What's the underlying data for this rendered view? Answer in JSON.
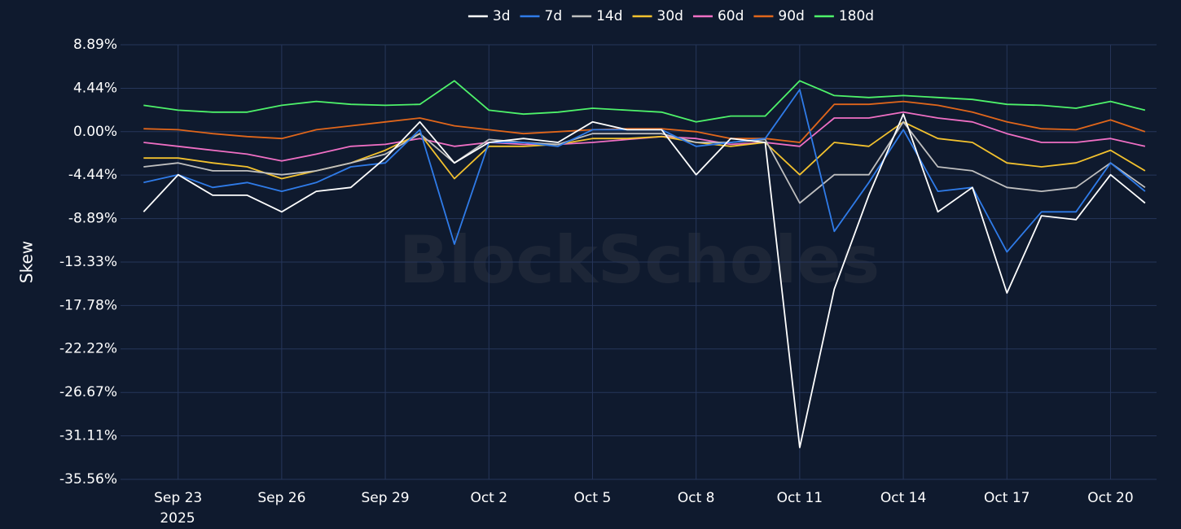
{
  "chart_data": {
    "type": "line",
    "watermark": "BlockScholes",
    "y_label": "Skew",
    "x_year_label": "2025",
    "background": "#0f1a2e",
    "grid": true,
    "legend": "top",
    "x": [
      "2025-09-22",
      "2025-09-23",
      "2025-09-24",
      "2025-09-25",
      "2025-09-26",
      "2025-09-27",
      "2025-09-28",
      "2025-09-29",
      "2025-09-30",
      "2025-10-01",
      "2025-10-02",
      "2025-10-03",
      "2025-10-04",
      "2025-10-05",
      "2025-10-06",
      "2025-10-07",
      "2025-10-08",
      "2025-10-09",
      "2025-10-10",
      "2025-10-11",
      "2025-10-12",
      "2025-10-13",
      "2025-10-14",
      "2025-10-15",
      "2025-10-16",
      "2025-10-17",
      "2025-10-18",
      "2025-10-19",
      "2025-10-20",
      "2025-10-21"
    ],
    "xlim": [
      "2025-09-21T08:00",
      "2025-10-21T08:00"
    ],
    "xticks": [
      {
        "value": "2025-09-23",
        "label": "Sep 23"
      },
      {
        "value": "2025-09-26",
        "label": "Sep 26"
      },
      {
        "value": "2025-09-29",
        "label": "Sep 29"
      },
      {
        "value": "2025-10-02",
        "label": "Oct 2"
      },
      {
        "value": "2025-10-05",
        "label": "Oct 5"
      },
      {
        "value": "2025-10-08",
        "label": "Oct 8"
      },
      {
        "value": "2025-10-11",
        "label": "Oct 11"
      },
      {
        "value": "2025-10-14",
        "label": "Oct 14"
      },
      {
        "value": "2025-10-17",
        "label": "Oct 17"
      },
      {
        "value": "2025-10-20",
        "label": "Oct 20"
      }
    ],
    "ylim": [
      -35.56,
      8.89
    ],
    "yticks": [
      {
        "value": 8.89,
        "label": "8.89%"
      },
      {
        "value": 4.44,
        "label": "4.44%"
      },
      {
        "value": 0,
        "label": "0.00%"
      },
      {
        "value": -4.44,
        "label": "-4.44%"
      },
      {
        "value": -8.89,
        "label": "-8.89%"
      },
      {
        "value": -13.33,
        "label": "-13.33%"
      },
      {
        "value": -17.78,
        "label": "-17.78%"
      },
      {
        "value": -22.22,
        "label": "-22.22%"
      },
      {
        "value": -26.67,
        "label": "-26.67%"
      },
      {
        "value": -31.11,
        "label": "-31.11%"
      },
      {
        "value": -35.56,
        "label": "-35.56%"
      }
    ],
    "series": [
      {
        "name": "3d",
        "color": "#ffffff",
        "values": [
          -8.2,
          -4.4,
          -6.5,
          -6.5,
          -8.2,
          -6.1,
          -5.7,
          -2.7,
          1.0,
          -3.2,
          -1.1,
          -0.7,
          -1.1,
          1.0,
          0.2,
          0.2,
          -4.4,
          -0.7,
          -1.1,
          -32.3,
          -16.1,
          -6.5,
          1.8,
          -8.2,
          -5.7,
          -16.5,
          -8.6,
          -9.0,
          -4.4,
          -7.3
        ]
      },
      {
        "name": "7d",
        "color": "#2f7be8",
        "values": [
          -5.2,
          -4.4,
          -5.7,
          -5.2,
          -6.1,
          -5.2,
          -3.6,
          -3.2,
          0.2,
          -11.5,
          -1.1,
          -1.1,
          -1.5,
          0.2,
          0.2,
          0.2,
          -1.5,
          -1.1,
          -0.7,
          4.3,
          -10.2,
          -5.2,
          0.2,
          -6.1,
          -5.7,
          -12.3,
          -8.2,
          -8.2,
          -3.2,
          -6.1
        ]
      },
      {
        "name": "14d",
        "color": "#c0c0c0",
        "values": [
          -3.6,
          -3.2,
          -4.0,
          -4.0,
          -4.4,
          -4.0,
          -3.2,
          -2.3,
          -0.2,
          -3.2,
          -0.8,
          -1.1,
          -1.3,
          -0.2,
          -0.2,
          -0.2,
          -1.1,
          -1.1,
          -0.8,
          -7.3,
          -4.4,
          -4.4,
          1.0,
          -3.6,
          -4.0,
          -5.7,
          -6.1,
          -5.7,
          -3.2,
          -5.7
        ]
      },
      {
        "name": "30d",
        "color": "#f2c12e",
        "values": [
          -2.7,
          -2.7,
          -3.2,
          -3.6,
          -4.8,
          -4.0,
          -3.2,
          -1.9,
          -0.2,
          -4.8,
          -1.5,
          -1.5,
          -1.3,
          -0.7,
          -0.7,
          -0.5,
          -1.1,
          -1.5,
          -1.1,
          -4.4,
          -1.1,
          -1.5,
          1.0,
          -0.7,
          -1.1,
          -3.2,
          -3.6,
          -3.2,
          -1.9,
          -4.0
        ]
      },
      {
        "name": "60d",
        "color": "#ef6fc4",
        "values": [
          -1.1,
          -1.5,
          -1.9,
          -2.3,
          -3.0,
          -2.3,
          -1.5,
          -1.3,
          -0.7,
          -1.5,
          -1.1,
          -1.3,
          -1.3,
          -1.1,
          -0.8,
          -0.5,
          -0.7,
          -1.3,
          -1.1,
          -1.5,
          1.4,
          1.4,
          2.0,
          1.4,
          1.0,
          -0.2,
          -1.1,
          -1.1,
          -0.7,
          -1.5
        ]
      },
      {
        "name": "90d",
        "color": "#e0661b",
        "values": [
          0.3,
          0.2,
          -0.2,
          -0.5,
          -0.7,
          0.2,
          0.6,
          1.0,
          1.4,
          0.6,
          0.2,
          -0.2,
          0.0,
          0.2,
          0.3,
          0.3,
          0.0,
          -0.7,
          -0.7,
          -1.1,
          2.8,
          2.8,
          3.1,
          2.7,
          2.0,
          1.0,
          0.3,
          0.2,
          1.2,
          0.0
        ]
      },
      {
        "name": "180d",
        "color": "#4ef26a",
        "values": [
          2.7,
          2.2,
          2.0,
          2.0,
          2.7,
          3.1,
          2.8,
          2.7,
          2.8,
          5.2,
          2.2,
          1.8,
          2.0,
          2.4,
          2.2,
          2.0,
          1.0,
          1.6,
          1.6,
          5.2,
          3.7,
          3.5,
          3.7,
          3.5,
          3.3,
          2.8,
          2.7,
          2.4,
          3.1,
          2.2
        ]
      }
    ]
  }
}
